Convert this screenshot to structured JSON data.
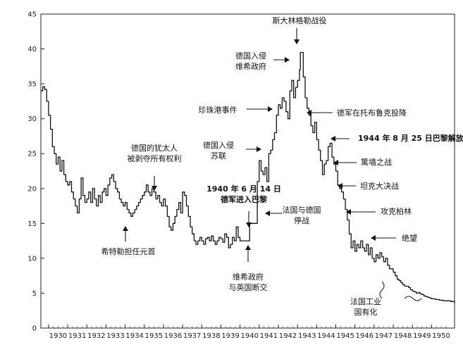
{
  "chart_data": {
    "type": "line",
    "title": "",
    "xlabel": "",
    "ylabel": "",
    "xlim": [
      1929.6,
      1951.2
    ],
    "ylim": [
      0,
      45
    ],
    "grid": false,
    "x_ticks": [
      "1930",
      "1931",
      "1932",
      "1933",
      "1934",
      "1935",
      "1936",
      "1937",
      "1938",
      "1939",
      "1940",
      "1941",
      "1942",
      "1943",
      "1944",
      "1945",
      "1946",
      "1947",
      "1948",
      "1949",
      "1950"
    ],
    "y_ticks": [
      "0",
      "5",
      "10",
      "15",
      "20",
      "25",
      "30",
      "35",
      "40",
      "45"
    ],
    "series": [
      {
        "points": [
          [
            1929.6,
            34.0
          ],
          [
            1929.7,
            34.6
          ],
          [
            1929.8,
            34.2
          ],
          [
            1929.9,
            32.5
          ],
          [
            1930.0,
            30.5
          ],
          [
            1930.1,
            28.5
          ],
          [
            1930.2,
            26.0
          ],
          [
            1930.3,
            25.0
          ],
          [
            1930.4,
            23.5
          ],
          [
            1930.5,
            24.5
          ],
          [
            1930.6,
            22.5
          ],
          [
            1930.7,
            24.0
          ],
          [
            1930.8,
            22.0
          ],
          [
            1930.9,
            21.0
          ],
          [
            1931.0,
            20.5
          ],
          [
            1931.1,
            21.0
          ],
          [
            1931.2,
            19.5
          ],
          [
            1931.3,
            18.5
          ],
          [
            1931.4,
            17.5
          ],
          [
            1931.5,
            16.5
          ],
          [
            1931.6,
            18.5
          ],
          [
            1931.7,
            21.5
          ],
          [
            1931.8,
            19.0
          ],
          [
            1931.9,
            18.0
          ],
          [
            1932.0,
            18.5
          ],
          [
            1932.1,
            19.5
          ],
          [
            1932.2,
            18.0
          ],
          [
            1932.3,
            20.0
          ],
          [
            1932.4,
            18.5
          ],
          [
            1932.5,
            17.5
          ],
          [
            1932.6,
            19.0
          ],
          [
            1932.7,
            18.0
          ],
          [
            1932.8,
            19.5
          ],
          [
            1932.9,
            20.0
          ],
          [
            1933.0,
            19.0
          ],
          [
            1933.1,
            20.5
          ],
          [
            1933.2,
            21.5
          ],
          [
            1933.3,
            22.0
          ],
          [
            1933.4,
            21.0
          ],
          [
            1933.5,
            20.0
          ],
          [
            1933.6,
            19.5
          ],
          [
            1933.7,
            18.5
          ],
          [
            1933.8,
            18.0
          ],
          [
            1933.9,
            17.5
          ],
          [
            1934.0,
            18.0
          ],
          [
            1934.1,
            17.0
          ],
          [
            1934.2,
            16.5
          ],
          [
            1934.3,
            16.0
          ],
          [
            1934.4,
            16.5
          ],
          [
            1934.5,
            17.0
          ],
          [
            1934.6,
            17.5
          ],
          [
            1934.7,
            18.0
          ],
          [
            1934.8,
            18.5
          ],
          [
            1934.9,
            19.0
          ],
          [
            1935.0,
            19.5
          ],
          [
            1935.1,
            20.5
          ],
          [
            1935.2,
            19.5
          ],
          [
            1935.3,
            19.0
          ],
          [
            1935.4,
            20.0
          ],
          [
            1935.5,
            19.5
          ],
          [
            1935.6,
            18.5
          ],
          [
            1935.7,
            19.0
          ],
          [
            1935.8,
            18.0
          ],
          [
            1935.9,
            17.5
          ],
          [
            1936.0,
            18.5
          ],
          [
            1936.1,
            17.5
          ],
          [
            1936.2,
            16.0
          ],
          [
            1936.3,
            14.5
          ],
          [
            1936.4,
            14.0
          ],
          [
            1936.5,
            15.0
          ],
          [
            1936.6,
            16.0
          ],
          [
            1936.7,
            17.0
          ],
          [
            1936.8,
            18.0
          ],
          [
            1936.9,
            16.5
          ],
          [
            1937.0,
            19.5
          ],
          [
            1937.1,
            19.0
          ],
          [
            1937.2,
            17.5
          ],
          [
            1937.3,
            16.0
          ],
          [
            1937.4,
            14.5
          ],
          [
            1937.5,
            13.5
          ],
          [
            1937.6,
            12.5
          ],
          [
            1937.7,
            12.0
          ],
          [
            1937.8,
            12.5
          ],
          [
            1937.9,
            13.0
          ],
          [
            1938.0,
            12.5
          ],
          [
            1938.1,
            12.0
          ],
          [
            1938.2,
            12.8
          ],
          [
            1938.3,
            13.0
          ],
          [
            1938.4,
            12.5
          ],
          [
            1938.5,
            13.2
          ],
          [
            1938.6,
            12.5
          ],
          [
            1938.7,
            12.0
          ],
          [
            1938.8,
            12.5
          ],
          [
            1938.9,
            13.0
          ],
          [
            1939.0,
            12.8
          ],
          [
            1939.1,
            12.3
          ],
          [
            1939.2,
            13.5
          ],
          [
            1939.3,
            13.0
          ],
          [
            1939.4,
            11.5
          ],
          [
            1939.5,
            12.0
          ],
          [
            1939.6,
            13.0
          ],
          [
            1939.7,
            12.5
          ],
          [
            1939.8,
            14.5
          ],
          [
            1939.9,
            13.0
          ],
          [
            1940.0,
            12.5
          ],
          [
            1940.3,
            12.5
          ],
          [
            1940.5,
            15.0
          ],
          [
            1940.9,
            21.0
          ],
          [
            1941.0,
            24.0
          ],
          [
            1941.1,
            22.5
          ],
          [
            1941.2,
            22.0
          ],
          [
            1941.3,
            23.0
          ],
          [
            1941.4,
            21.0
          ],
          [
            1941.5,
            25.0
          ],
          [
            1941.6,
            25.5
          ],
          [
            1941.7,
            27.0
          ],
          [
            1941.8,
            28.0
          ],
          [
            1941.9,
            30.5
          ],
          [
            1942.0,
            32.0
          ],
          [
            1942.1,
            31.5
          ],
          [
            1942.2,
            33.0
          ],
          [
            1942.3,
            32.5
          ],
          [
            1942.4,
            31.0
          ],
          [
            1942.5,
            30.0
          ],
          [
            1942.6,
            34.0
          ],
          [
            1942.7,
            35.5
          ],
          [
            1942.8,
            33.0
          ],
          [
            1942.9,
            34.5
          ],
          [
            1943.0,
            35.5
          ],
          [
            1943.1,
            37.0
          ],
          [
            1943.15,
            39.5
          ],
          [
            1943.3,
            36.0
          ],
          [
            1943.4,
            33.0
          ],
          [
            1943.5,
            31.5
          ],
          [
            1943.6,
            30.5
          ],
          [
            1943.7,
            29.0
          ],
          [
            1943.8,
            28.0
          ],
          [
            1943.9,
            29.5
          ],
          [
            1944.0,
            27.0
          ],
          [
            1944.1,
            25.5
          ],
          [
            1944.2,
            24.0
          ],
          [
            1944.3,
            22.0
          ],
          [
            1944.4,
            23.5
          ],
          [
            1944.5,
            24.0
          ],
          [
            1944.6,
            26.0
          ],
          [
            1944.7,
            26.5
          ],
          [
            1944.8,
            24.5
          ],
          [
            1944.9,
            23.5
          ],
          [
            1945.0,
            22.5
          ],
          [
            1945.1,
            20.5
          ],
          [
            1945.2,
            20.0
          ],
          [
            1945.3,
            19.5
          ],
          [
            1945.4,
            18.5
          ],
          [
            1945.5,
            17.0
          ],
          [
            1945.6,
            15.5
          ],
          [
            1945.7,
            13.5
          ],
          [
            1945.8,
            11.5
          ],
          [
            1945.9,
            12.5
          ],
          [
            1946.0,
            11.0
          ],
          [
            1946.1,
            12.0
          ],
          [
            1946.2,
            11.5
          ],
          [
            1946.3,
            12.5
          ],
          [
            1946.4,
            11.5
          ],
          [
            1946.5,
            11.0
          ],
          [
            1946.6,
            12.0
          ],
          [
            1946.7,
            10.5
          ],
          [
            1946.8,
            11.5
          ],
          [
            1946.9,
            10.0
          ],
          [
            1947.0,
            9.5
          ],
          [
            1947.1,
            10.5
          ],
          [
            1947.2,
            10.0
          ],
          [
            1947.3,
            10.8
          ],
          [
            1947.4,
            10.2
          ],
          [
            1947.5,
            9.5
          ],
          [
            1947.6,
            10.0
          ],
          [
            1947.7,
            9.0
          ],
          [
            1947.8,
            8.5
          ],
          [
            1947.9,
            8.5
          ],
          [
            1948.0,
            8.0
          ],
          [
            1948.1,
            7.5
          ],
          [
            1948.2,
            7.0
          ],
          [
            1948.3,
            6.8
          ],
          [
            1948.4,
            6.5
          ],
          [
            1948.5,
            6.2
          ],
          [
            1948.6,
            6.0
          ],
          [
            1948.7,
            6.0
          ],
          [
            1948.8,
            5.8
          ],
          [
            1948.9,
            5.5
          ],
          [
            1949.0,
            5.3
          ],
          [
            1949.1,
            5.2
          ],
          [
            1949.2,
            5.0
          ],
          [
            1949.3,
            5.1
          ],
          [
            1949.4,
            4.9
          ],
          [
            1949.5,
            4.8
          ],
          [
            1949.6,
            4.6
          ],
          [
            1949.7,
            4.5
          ],
          [
            1949.8,
            4.4
          ],
          [
            1949.9,
            4.3
          ],
          [
            1950.0,
            4.2
          ],
          [
            1950.2,
            4.1
          ],
          [
            1950.4,
            4.0
          ],
          [
            1950.6,
            3.9
          ],
          [
            1950.8,
            3.9
          ],
          [
            1951.0,
            3.8
          ],
          [
            1951.2,
            3.6
          ]
        ]
      }
    ],
    "annotations": [
      {
        "id": "stalingrad",
        "lines": [
          "斯大林格勒战役"
        ],
        "bold": false
      },
      {
        "id": "vichy-invasion",
        "lines": [
          "德国入侵",
          "维希政府"
        ],
        "bold": false
      },
      {
        "id": "pearl-harbor",
        "lines": [
          "珍珠港事件"
        ],
        "bold": false
      },
      {
        "id": "tobruk",
        "lines": [
          "德军在托布鲁克投降"
        ],
        "bold": false
      },
      {
        "id": "ussr-invasion",
        "lines": [
          "德国入侵",
          "苏联"
        ],
        "bold": false
      },
      {
        "id": "paris-liberation",
        "lines": [
          "1944 年 8 月 25 日巴黎解放"
        ],
        "bold": true
      },
      {
        "id": "jewish-property",
        "lines": [
          "德国的犹太人",
          "被剥夺所有权利"
        ],
        "bold": false
      },
      {
        "id": "bulge",
        "lines": [
          "篱墙之战"
        ],
        "bold": false
      },
      {
        "id": "tank-battle",
        "lines": [
          "坦克大决战"
        ],
        "bold": false
      },
      {
        "id": "paris-entry",
        "lines": [
          "1940 年 6 月 14 日",
          "德军进入巴黎"
        ],
        "bold": true
      },
      {
        "id": "armistice",
        "lines": [
          "法国与德国",
          "停战"
        ],
        "bold": false
      },
      {
        "id": "berlin",
        "lines": [
          "攻克柏林"
        ],
        "bold": false
      },
      {
        "id": "despair",
        "lines": [
          "绝望"
        ],
        "bold": false
      },
      {
        "id": "hitler",
        "lines": [
          "希特勒担任元首"
        ],
        "bold": false
      },
      {
        "id": "vichy-break",
        "lines": [
          "维希政府",
          "与英国断交"
        ],
        "bold": false
      },
      {
        "id": "nationalization",
        "lines": [
          "法国工业",
          "国有化"
        ],
        "bold": false
      }
    ]
  }
}
